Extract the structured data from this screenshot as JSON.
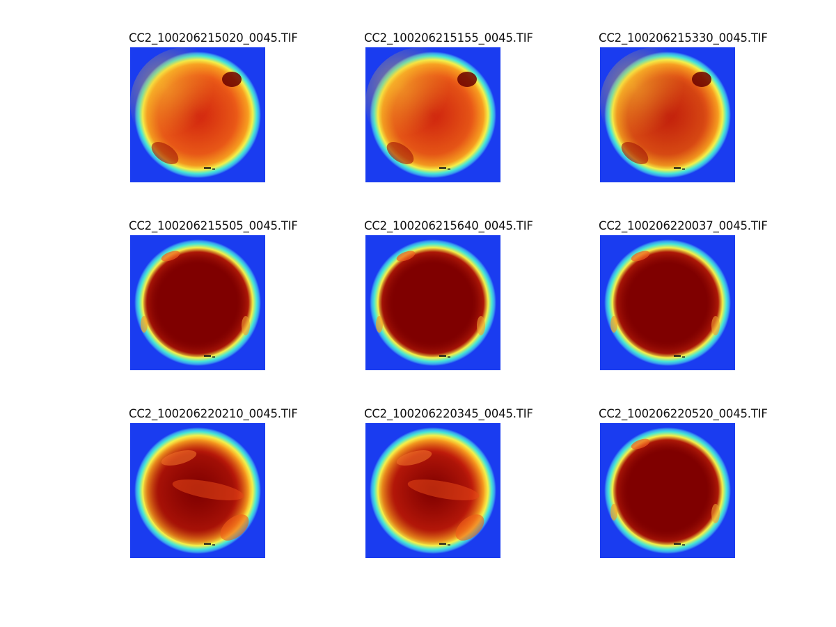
{
  "figure": {
    "background": "#ffffff",
    "panels": [
      {
        "title": "CC2_100206215020_0045.TIF",
        "map": "warm",
        "darkness": 0.15,
        "specks": true
      },
      {
        "title": "CC2_100206215155_0045.TIF",
        "map": "warm",
        "darkness": 0.18,
        "specks": true
      },
      {
        "title": "CC2_100206215330_0045.TIF",
        "map": "warm",
        "darkness": 0.32,
        "specks": true
      },
      {
        "title": "CC2_100206215505_0045.TIF",
        "map": "saturated",
        "darkness": 1.0,
        "specks": true
      },
      {
        "title": "CC2_100206215640_0045.TIF",
        "map": "saturated",
        "darkness": 1.0,
        "specks": true
      },
      {
        "title": "CC2_100206220037_0045.TIF",
        "map": "saturated",
        "darkness": 0.85,
        "specks": true
      },
      {
        "title": "CC2_100206220210_0045.TIF",
        "map": "mixed",
        "darkness": 0.7,
        "specks": true
      },
      {
        "title": "CC2_100206220345_0045.TIF",
        "map": "mixed",
        "darkness": 0.55,
        "specks": true
      },
      {
        "title": "CC2_100206220520_0045.TIF",
        "map": "saturated",
        "darkness": 0.95,
        "specks": true
      }
    ],
    "colors": {
      "background_field": "#1a3cf0",
      "ring_cyan": "#46e6d6",
      "ring_yellow": "#f4f04a",
      "warm_orange": "#f7641a",
      "warm_red": "#e02a10",
      "saturated": "#7f0000"
    }
  }
}
